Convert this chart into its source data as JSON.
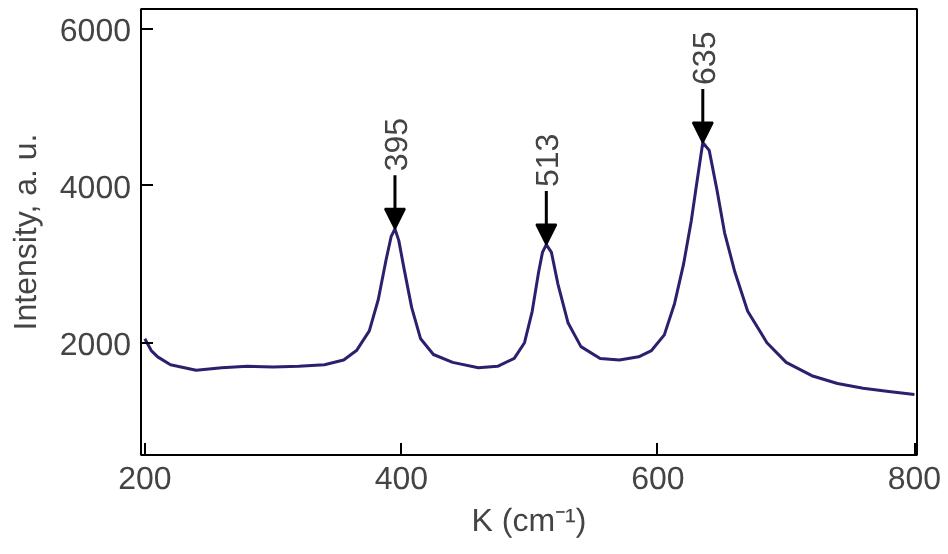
{
  "chart_data": {
    "type": "line",
    "xlabel": "K (cm⁻¹)",
    "ylabel": "Intensity, a. u.",
    "x": [
      200,
      205,
      210,
      220,
      240,
      260,
      280,
      300,
      320,
      340,
      355,
      365,
      375,
      382,
      388,
      392,
      395,
      398,
      402,
      408,
      415,
      425,
      440,
      460,
      475,
      488,
      496,
      502,
      507,
      510,
      513,
      517,
      522,
      530,
      540,
      555,
      570,
      585,
      595,
      605,
      613,
      620,
      626,
      630,
      635,
      640,
      646,
      652,
      660,
      670,
      685,
      700,
      720,
      740,
      760,
      780,
      800
    ],
    "series": [
      {
        "color": "#2e1f6e",
        "values": [
          2050,
          1900,
          1820,
          1720,
          1650,
          1680,
          1700,
          1690,
          1700,
          1720,
          1780,
          1900,
          2150,
          2550,
          3050,
          3350,
          3450,
          3300,
          2950,
          2450,
          2050,
          1850,
          1750,
          1680,
          1700,
          1800,
          2000,
          2400,
          2900,
          3150,
          3250,
          3150,
          2750,
          2250,
          1950,
          1800,
          1780,
          1820,
          1900,
          2100,
          2500,
          3000,
          3550,
          4000,
          4550,
          4450,
          3950,
          3400,
          2900,
          2400,
          2000,
          1750,
          1580,
          1480,
          1420,
          1380,
          1340
        ]
      }
    ],
    "xlim": [
      197,
      802
    ],
    "ylim": [
      570,
      6250
    ],
    "xticks": [
      200,
      400,
      600,
      800
    ],
    "yticks": [
      2000,
      4000,
      6000
    ],
    "grid": false,
    "annotations": [
      {
        "text": "395",
        "x": 395,
        "y": 3450
      },
      {
        "text": "513",
        "x": 513,
        "y": 3250
      },
      {
        "text": "635",
        "x": 635,
        "y": 4550
      }
    ]
  }
}
